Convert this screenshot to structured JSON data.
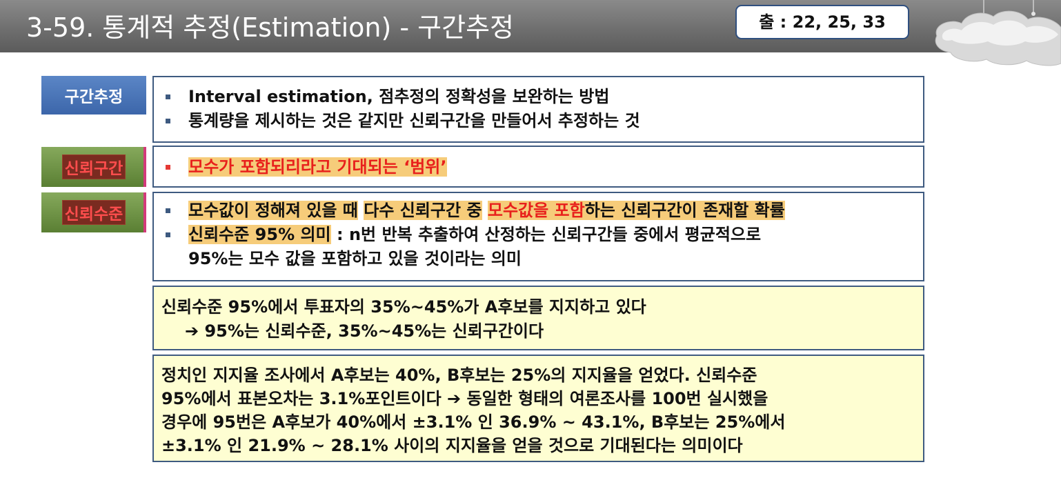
{
  "header": {
    "title": "3-59. 통계적 추정(Estimation) - 구간추정",
    "source": "출 : 22, 25, 33"
  },
  "sections": [
    {
      "label": "구간추정",
      "items": [
        "Interval estimation, 점추정의 정확성을 보완하는 방법",
        "통계량을 제시하는 것은 같지만 신뢰구간을 만들어서 추정하는 것"
      ]
    },
    {
      "label": "신뢰구간",
      "items": [
        "모수가 포함되리라고 기대되는 ‘범위’"
      ]
    },
    {
      "label": "신뢰수준",
      "item1_parts": [
        "모수값이 정해져 있을 때",
        " ",
        "다수 신뢰구간 중",
        " ",
        "모수값을 포함",
        "하는 신뢰구간이 존재할 확률"
      ],
      "item2_highlight": "신뢰수준 95% 의미",
      "item2_rest": " : n번 반복 추출하여 산정하는 신뢰구간들 중에서 평균적으로",
      "item2_cont": "95%는 모수 값을 포함하고 있을 것이라는 의미"
    }
  ],
  "example1": {
    "line1": "신뢰수준 95%에서 투표자의 35%~45%가 A후보를 지지하고 있다",
    "arrow": "➔",
    "line2": " 95%는 신뢰수준, 35%~45%는 신뢰구간이다"
  },
  "example2": {
    "lines": [
      "정치인 지지율 조사에서 A후보는 40%, B후보는 25%의 지지율을 얻었다. 신뢰수준",
      "95%에서 표본오차는 3.1%포인트이다 ➔ 동일한 형태의 여론조사를 100번 실시했을",
      "경우에 95번은 A후보가 40%에서 ±3.1% 인 36.9% ~ 43.1%, B후보는 25%에서",
      "±3.1% 인 21.9% ~ 28.1% 사이의 지지율을 얻을 것으로 기대된다는 의미이다"
    ]
  },
  "colors": {
    "header": "#6f6f6f",
    "label_blue": "#3c66aa",
    "label_green": "#5a7f33",
    "highlight": "#f6cc7a",
    "red_text": "#e8201c",
    "example_bg": "#fefed2",
    "border": "#3e5a80"
  },
  "icons": {
    "decoration": "cloud-icon"
  }
}
